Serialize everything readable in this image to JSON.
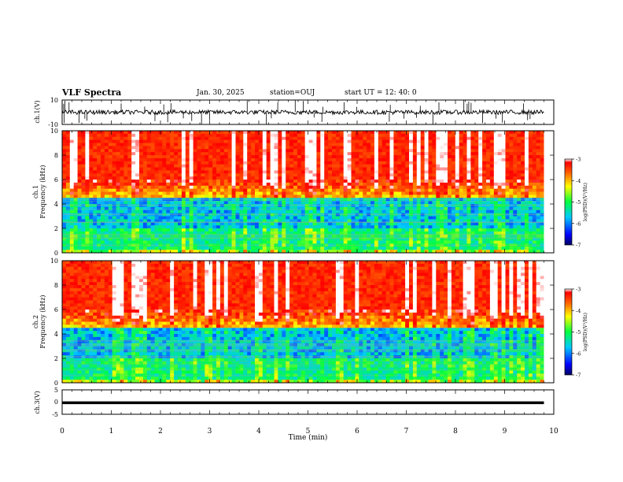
{
  "header": {
    "title": "VLF Spectra",
    "date": "Jan. 30, 2025",
    "station": "station=OUJ",
    "start": "start  UT =   12: 40: 0"
  },
  "chart_data": [
    {
      "panel": "ch1-waveform",
      "type": "line",
      "ylabel": "ch.1(V)",
      "ylim": [
        -10,
        10
      ],
      "yticks": [
        "10",
        "-10"
      ],
      "xlim": [
        0,
        10
      ],
      "color": "#000000",
      "x": [
        0,
        0.5,
        1,
        1.5,
        2,
        2.5,
        3,
        3.5,
        4,
        4.5,
        5,
        5.5,
        6,
        6.5,
        7,
        7.5,
        8,
        8.5,
        9,
        9.5,
        9.8
      ],
      "y": [
        0.8,
        0.5,
        -0.6,
        0.7,
        0.9,
        0.6,
        -0.8,
        0.4,
        0.2,
        0.6,
        0.3,
        0.7,
        0.5,
        -0.5,
        0.4,
        0.6,
        0.2,
        0.8,
        -0.7,
        0.4,
        0.6
      ]
    },
    {
      "panel": "ch1-spectrogram",
      "type": "heatmap",
      "ylabel": "ch.1 Frequency (kHz)",
      "ylim": [
        0,
        10
      ],
      "yticks": [
        "0",
        "2",
        "4",
        "6",
        "8",
        "10"
      ],
      "xlim": [
        0,
        10
      ],
      "colorbar": {
        "label": "log(PSD)(V²/Hz)",
        "ticks": [
          "-3",
          "-4",
          "-5",
          "-6",
          "-7"
        ],
        "range": [
          -7,
          -3
        ]
      }
    },
    {
      "panel": "ch2-spectrogram",
      "type": "heatmap",
      "ylabel": "ch.2 Frequency (kHz)",
      "ylim": [
        0,
        10
      ],
      "yticks": [
        "0",
        "2",
        "4",
        "6",
        "8",
        "10"
      ],
      "xlim": [
        0,
        10
      ],
      "colorbar": {
        "label": "log(PSD)(V²/Hz)",
        "ticks": [
          "-3",
          "-4",
          "-5",
          "-6",
          "-7"
        ],
        "range": [
          -7,
          -3
        ]
      }
    },
    {
      "panel": "ch3-waveform",
      "type": "line",
      "ylabel": "ch.3(V)",
      "ylim": [
        -5,
        5
      ],
      "yticks": [
        "5",
        "0",
        "-5"
      ],
      "xlim": [
        0,
        10
      ],
      "color": "#000000",
      "x": [
        0,
        9.8
      ],
      "y": [
        -0.3,
        -0.3
      ]
    }
  ],
  "xaxis": {
    "label": "Time (min)",
    "ticks": [
      "0",
      "1",
      "2",
      "3",
      "4",
      "5",
      "6",
      "7",
      "8",
      "9",
      "10"
    ]
  },
  "colors": {
    "low": "#00008b",
    "mid": "#00ff00",
    "high": "#ff0000"
  }
}
